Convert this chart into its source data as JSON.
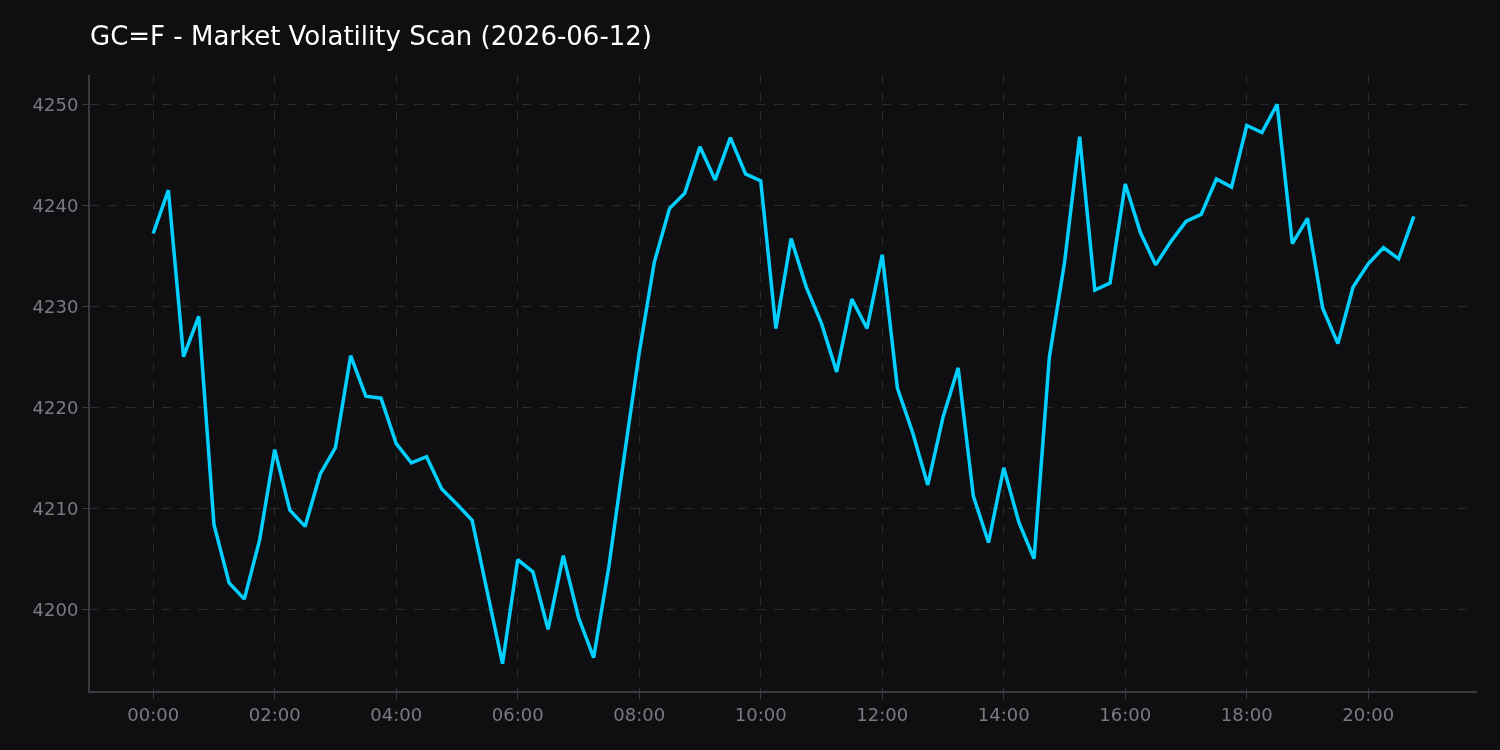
{
  "chart_data": {
    "type": "line",
    "title": "GC=F - Market Volatility Scan (2026-06-12)",
    "x": [
      0,
      0.25,
      0.5,
      0.75,
      1,
      1.25,
      1.5,
      1.75,
      2,
      2.25,
      2.5,
      2.75,
      3,
      3.25,
      3.5,
      3.75,
      4,
      4.25,
      4.5,
      4.75,
      5,
      5.25,
      5.5,
      5.75,
      6,
      6.25,
      6.5,
      6.75,
      7,
      7.25,
      7.5,
      7.75,
      8,
      8.25,
      8.5,
      8.75,
      9,
      9.25,
      9.5,
      9.75,
      10,
      10.25,
      10.5,
      10.75,
      11,
      11.25,
      11.5,
      11.75,
      12,
      12.25,
      12.5,
      12.75,
      13,
      13.25,
      13.5,
      13.75,
      14,
      14.25,
      14.5,
      14.75,
      15,
      15.25,
      15.5,
      15.75,
      16,
      16.25,
      16.5,
      16.75,
      17,
      17.25,
      17.5,
      17.75,
      18,
      18.25,
      18.5,
      18.75,
      19,
      19.25,
      19.5,
      19.75,
      20,
      20.25,
      20.5,
      20.75
    ],
    "series": [
      {
        "color": "#00cfff",
        "values": [
          4237.2,
          4241.5,
          4225.0,
          4229.0,
          4208.4,
          4202.6,
          4201.0,
          4206.8,
          4215.8,
          4209.8,
          4208.2,
          4213.4,
          4216.0,
          4225.1,
          4221.1,
          4220.9,
          4216.4,
          4214.5,
          4215.1,
          4211.9,
          4210.4,
          4208.8,
          4201.7,
          4194.6,
          4204.9,
          4203.7,
          4198.0,
          4205.3,
          4199.2,
          4195.2,
          4204.2,
          4215.0,
          4225.4,
          4234.4,
          4239.7,
          4241.2,
          4245.8,
          4242.5,
          4246.7,
          4243.1,
          4242.4,
          4227.8,
          4236.7,
          4231.9,
          4228.3,
          4223.5,
          4230.7,
          4227.8,
          4235.1,
          4221.9,
          4217.5,
          4212.3,
          4219.0,
          4223.9,
          4211.2,
          4206.6,
          4214.0,
          4208.6,
          4205.0,
          4224.9,
          4234.3,
          4246.8,
          4231.6,
          4232.3,
          4242.1,
          4237.3,
          4234.1,
          4236.4,
          4238.4,
          4239.1,
          4242.6,
          4241.8,
          4247.9,
          4247.2,
          4250.0,
          4236.2,
          4238.7,
          4229.8,
          4226.3,
          4231.9,
          4234.2,
          4235.8,
          4234.7,
          4238.9
        ]
      }
    ],
    "xlim": [
      -1.04,
      21.79
    ],
    "xticks": [
      {
        "value": 0,
        "label": "00:00"
      },
      {
        "value": 2,
        "label": "02:00"
      },
      {
        "value": 4,
        "label": "04:00"
      },
      {
        "value": 6,
        "label": "06:00"
      },
      {
        "value": 8,
        "label": "08:00"
      },
      {
        "value": 10,
        "label": "10:00"
      },
      {
        "value": 12,
        "label": "12:00"
      },
      {
        "value": 14,
        "label": "14:00"
      },
      {
        "value": 16,
        "label": "16:00"
      },
      {
        "value": 18,
        "label": "18:00"
      },
      {
        "value": 20,
        "label": "20:00"
      }
    ],
    "ylim": [
      4191.9,
      4252.9
    ],
    "yticks": [
      4200,
      4210,
      4220,
      4230,
      4240,
      4250
    ],
    "grid": true,
    "line_style": "solid"
  }
}
